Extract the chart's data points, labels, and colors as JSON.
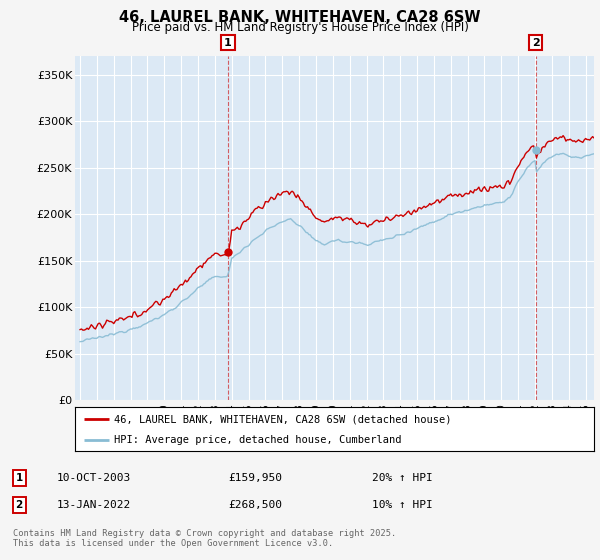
{
  "title": "46, LAUREL BANK, WHITEHAVEN, CA28 6SW",
  "subtitle": "Price paid vs. HM Land Registry's House Price Index (HPI)",
  "ylabel_ticks": [
    "£0",
    "£50K",
    "£100K",
    "£150K",
    "£200K",
    "£250K",
    "£300K",
    "£350K"
  ],
  "ytick_vals": [
    0,
    50000,
    100000,
    150000,
    200000,
    250000,
    300000,
    350000
  ],
  "ylim": [
    0,
    370000
  ],
  "xlim_start": 1994.7,
  "xlim_end": 2025.5,
  "sale1_x": 2003.78,
  "sale1_y": 159950,
  "sale1_date": "10-OCT-2003",
  "sale1_price": "£159,950",
  "sale1_hpi": "20% ↑ HPI",
  "sale2_x": 2022.04,
  "sale2_y": 268500,
  "sale2_date": "13-JAN-2022",
  "sale2_price": "£268,500",
  "sale2_hpi": "10% ↑ HPI",
  "legend_line1": "46, LAUREL BANK, WHITEHAVEN, CA28 6SW (detached house)",
  "legend_line2": "HPI: Average price, detached house, Cumberland",
  "footer": "Contains HM Land Registry data © Crown copyright and database right 2025.\nThis data is licensed under the Open Government Licence v3.0.",
  "line1_color": "#cc0000",
  "line2_color": "#89bcd4",
  "plot_bg": "#dce9f5",
  "grid_color": "#ffffff",
  "vline_color": "#cc0000",
  "marker_color1": "#cc0000",
  "marker_color2": "#89bcd4",
  "fig_bg": "#f5f5f5"
}
